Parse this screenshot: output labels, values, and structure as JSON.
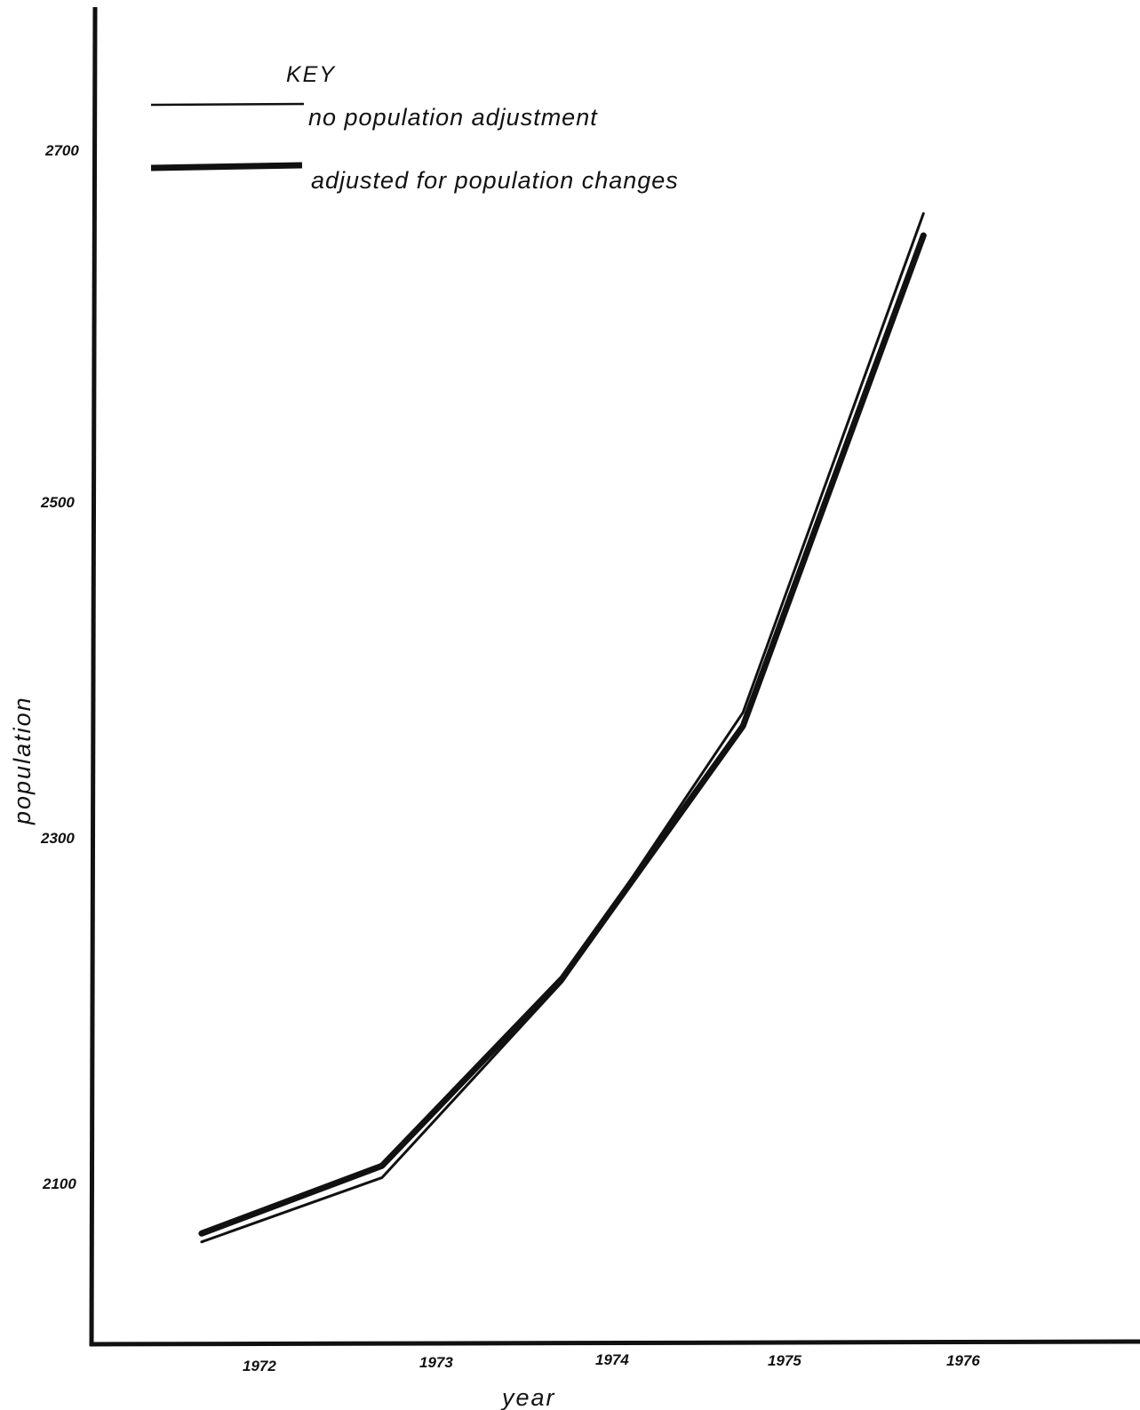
{
  "chart_data": {
    "type": "line",
    "title": "",
    "xlabel": "year",
    "ylabel": "population",
    "x_tick_labels": [
      "1972",
      "1973",
      "1974",
      "1975",
      "1976"
    ],
    "y_tick_labels": [
      "2100",
      "2300",
      "2500",
      "2700"
    ],
    "y_ticks": [
      2100,
      2300,
      2500,
      2700
    ],
    "ylim": [
      1990,
      2780
    ],
    "xlim": [
      1971.2,
      1977.0
    ],
    "grid": false,
    "legend": {
      "title": "KEY",
      "placement": "top-left"
    },
    "series": [
      {
        "name": "no population adjustment",
        "x": [
          1971.8,
          1972.8,
          1973.8,
          1974.8,
          1975.8
        ],
        "y": [
          2050,
          2088,
          2204,
          2363,
          2658
        ],
        "line_width": "thin",
        "color": "#111111"
      },
      {
        "name": "adjusted for population changes",
        "x": [
          1971.8,
          1972.8,
          1973.8,
          1974.8,
          1975.8
        ],
        "y": [
          2055,
          2095,
          2206,
          2355,
          2645
        ],
        "line_width": "thick",
        "color": "#111111"
      }
    ]
  }
}
